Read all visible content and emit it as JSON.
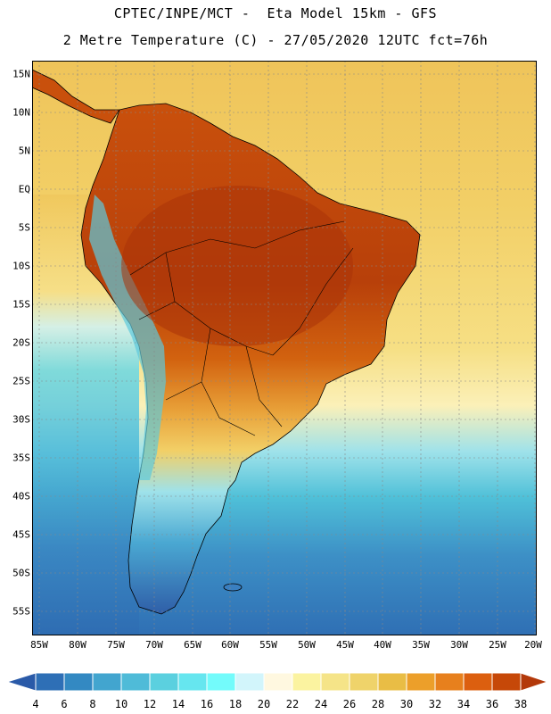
{
  "header": {
    "line1": "CPTEC/INPE/MCT -  Eta Model 15km - GFS",
    "line2": "2 Metre Temperature (C) - 27/05/2020 12UTC fct=76h"
  },
  "latitude_labels": [
    "15N",
    "10N",
    "5N",
    "EQ",
    "5S",
    "10S",
    "15S",
    "20S",
    "25S",
    "30S",
    "35S",
    "40S",
    "45S",
    "50S",
    "55S"
  ],
  "longitude_labels": [
    "85W",
    "80W",
    "75W",
    "70W",
    "65W",
    "60W",
    "55W",
    "50W",
    "45W",
    "40W",
    "35W",
    "30W",
    "25W",
    "20W"
  ],
  "colorbar": {
    "labels": [
      "4",
      "6",
      "8",
      "10",
      "12",
      "14",
      "16",
      "18",
      "20",
      "22",
      "24",
      "26",
      "28",
      "30",
      "32",
      "34",
      "36",
      "38"
    ],
    "colors": [
      "#2a5aa8",
      "#2e6fb6",
      "#3389c2",
      "#42a5cf",
      "#4fbbd8",
      "#5bd0df",
      "#66e6ef",
      "#73fbfb",
      "#d2f5fb",
      "#fff8e0",
      "#fbf3a0",
      "#f5e488",
      "#efd36a",
      "#e9bd45",
      "#ec9f2a",
      "#e7801d",
      "#dc5f0f",
      "#c64808",
      "#b3390a"
    ]
  },
  "colors": {
    "ocean_warm": "#f0c65c",
    "ocean_tropical": "#f3d46c",
    "ocean_mid": "#f9ec98",
    "ocean_cool": "#5fd1e0",
    "ocean_cold": "#3a7fc0",
    "land_hot": "#b3390a",
    "land_warm": "#dc5f0f",
    "andes_cold": "#2e6fb6"
  }
}
